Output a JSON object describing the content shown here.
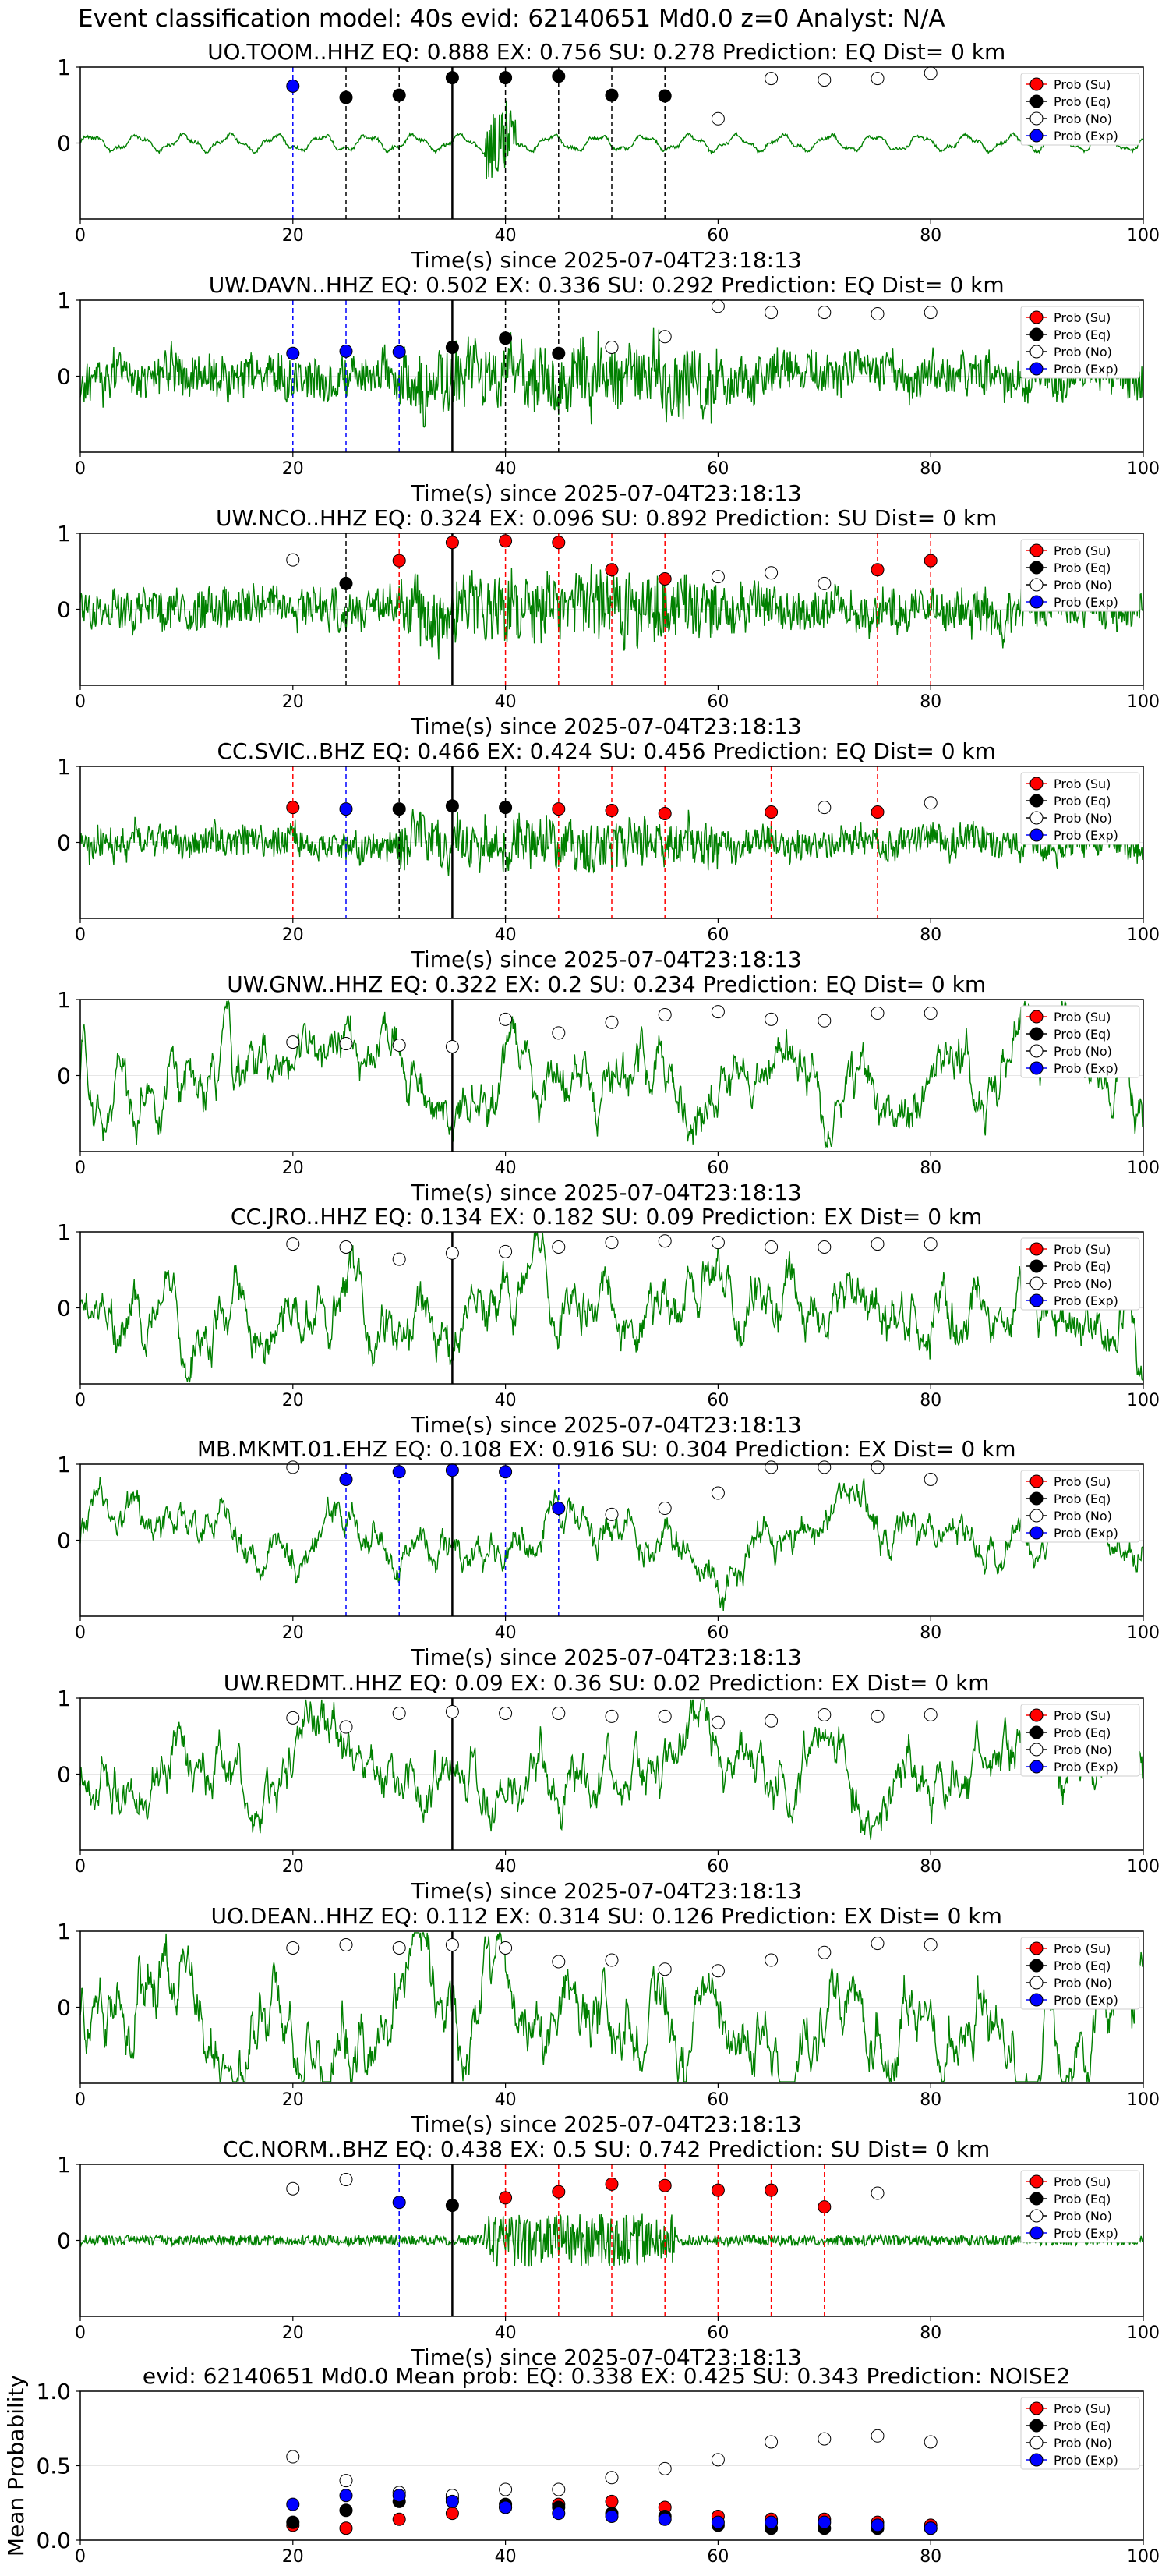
{
  "title": "Event classification model: 40s evid: 62140651 Md0.0 z=0 Analyst: N/A",
  "colors": {
    "trace": "#008000",
    "su": "#ff0000",
    "eq": "#000000",
    "no": "#ffffff",
    "exp": "#0000ff",
    "vline_red": "#ff0000",
    "vline_black": "#000000",
    "vline_blue": "#0000ff",
    "grid": "#e6e6e6"
  },
  "legend": [
    "Prob (Su)",
    "Prob (Eq)",
    "Prob (No)",
    "Prob (Exp)"
  ],
  "xlabel": "Time(s) since 2025-07-04T23:18:13",
  "xticks": [
    "0",
    "20",
    "40",
    "60",
    "80",
    "100"
  ],
  "station_yticks": [
    "1",
    "0"
  ],
  "chart_data": [
    {
      "type": "line",
      "title": "UO.TOOM..HHZ   EQ: 0.888  EX: 0.756  SU: 0.278   Prediction: EQ    Dist= 0 km",
      "xlabel": "Time(s) since 2025-07-04T23:18:13",
      "xlim": [
        0,
        100
      ],
      "ylim": [
        -1,
        1
      ],
      "trace_style": "smooth_low",
      "arrival_line": 35,
      "points": [
        {
          "x": 20,
          "y": 0.75,
          "cls": "exp"
        },
        {
          "x": 25,
          "y": 0.6,
          "cls": "eq"
        },
        {
          "x": 30,
          "y": 0.63,
          "cls": "eq"
        },
        {
          "x": 35,
          "y": 0.86,
          "cls": "eq"
        },
        {
          "x": 40,
          "y": 0.86,
          "cls": "eq"
        },
        {
          "x": 45,
          "y": 0.88,
          "cls": "eq"
        },
        {
          "x": 50,
          "y": 0.63,
          "cls": "eq"
        },
        {
          "x": 55,
          "y": 0.62,
          "cls": "eq"
        },
        {
          "x": 60,
          "y": 0.32,
          "cls": "no"
        },
        {
          "x": 65,
          "y": 0.85,
          "cls": "no"
        },
        {
          "x": 70,
          "y": 0.83,
          "cls": "no"
        },
        {
          "x": 75,
          "y": 0.85,
          "cls": "no"
        },
        {
          "x": 80,
          "y": 0.92,
          "cls": "no"
        }
      ]
    },
    {
      "type": "line",
      "title": "UW.DAVN..HHZ   EQ: 0.502  EX: 0.336  SU: 0.292   Prediction: EQ    Dist= 0 km",
      "xlabel": "Time(s) since 2025-07-04T23:18:13",
      "xlim": [
        0,
        100
      ],
      "ylim": [
        -1,
        1
      ],
      "trace_style": "noisy",
      "arrival_line": 35,
      "points": [
        {
          "x": 20,
          "y": 0.3,
          "cls": "exp"
        },
        {
          "x": 25,
          "y": 0.33,
          "cls": "exp"
        },
        {
          "x": 30,
          "y": 0.32,
          "cls": "exp"
        },
        {
          "x": 35,
          "y": 0.38,
          "cls": "eq"
        },
        {
          "x": 40,
          "y": 0.5,
          "cls": "eq"
        },
        {
          "x": 45,
          "y": 0.3,
          "cls": "eq"
        },
        {
          "x": 50,
          "y": 0.38,
          "cls": "no"
        },
        {
          "x": 55,
          "y": 0.52,
          "cls": "no"
        },
        {
          "x": 60,
          "y": 0.92,
          "cls": "no"
        },
        {
          "x": 65,
          "y": 0.84,
          "cls": "no"
        },
        {
          "x": 70,
          "y": 0.84,
          "cls": "no"
        },
        {
          "x": 75,
          "y": 0.82,
          "cls": "no"
        },
        {
          "x": 80,
          "y": 0.84,
          "cls": "no"
        }
      ]
    },
    {
      "type": "line",
      "title": "UW.NCO..HHZ   EQ: 0.324  EX: 0.096  SU: 0.892   Prediction: SU    Dist= 0 km",
      "xlabel": "Time(s) since 2025-07-04T23:18:13",
      "xlim": [
        0,
        100
      ],
      "ylim": [
        -1,
        1
      ],
      "trace_style": "noisy",
      "arrival_line": 35,
      "points": [
        {
          "x": 20,
          "y": 0.65,
          "cls": "no"
        },
        {
          "x": 25,
          "y": 0.34,
          "cls": "eq"
        },
        {
          "x": 30,
          "y": 0.64,
          "cls": "su"
        },
        {
          "x": 35,
          "y": 0.88,
          "cls": "su"
        },
        {
          "x": 40,
          "y": 0.9,
          "cls": "su"
        },
        {
          "x": 45,
          "y": 0.88,
          "cls": "su"
        },
        {
          "x": 50,
          "y": 0.52,
          "cls": "su"
        },
        {
          "x": 55,
          "y": 0.4,
          "cls": "su"
        },
        {
          "x": 60,
          "y": 0.43,
          "cls": "no"
        },
        {
          "x": 65,
          "y": 0.48,
          "cls": "no"
        },
        {
          "x": 70,
          "y": 0.34,
          "cls": "no"
        },
        {
          "x": 75,
          "y": 0.52,
          "cls": "su"
        },
        {
          "x": 80,
          "y": 0.64,
          "cls": "su"
        }
      ]
    },
    {
      "type": "line",
      "title": "CC.SVIC..BHZ   EQ: 0.466  EX: 0.424  SU: 0.456   Prediction: EQ    Dist= 0 km",
      "xlabel": "Time(s) since 2025-07-04T23:18:13",
      "xlim": [
        0,
        100
      ],
      "ylim": [
        -1,
        1
      ],
      "trace_style": "noisy_mid",
      "arrival_line": 35,
      "points": [
        {
          "x": 20,
          "y": 0.46,
          "cls": "su"
        },
        {
          "x": 25,
          "y": 0.44,
          "cls": "exp"
        },
        {
          "x": 30,
          "y": 0.44,
          "cls": "eq"
        },
        {
          "x": 35,
          "y": 0.48,
          "cls": "eq"
        },
        {
          "x": 40,
          "y": 0.46,
          "cls": "eq"
        },
        {
          "x": 45,
          "y": 0.44,
          "cls": "su"
        },
        {
          "x": 50,
          "y": 0.42,
          "cls": "su"
        },
        {
          "x": 55,
          "y": 0.38,
          "cls": "su"
        },
        {
          "x": 65,
          "y": 0.4,
          "cls": "su"
        },
        {
          "x": 70,
          "y": 0.46,
          "cls": "no"
        },
        {
          "x": 75,
          "y": 0.4,
          "cls": "su"
        },
        {
          "x": 80,
          "y": 0.52,
          "cls": "no"
        }
      ]
    },
    {
      "type": "line",
      "title": "UW.GNW..HHZ   EQ: 0.322  EX: 0.2  SU: 0.234   Prediction: EQ    Dist= 0 km",
      "xlabel": "Time(s) since 2025-07-04T23:18:13",
      "xlim": [
        0,
        100
      ],
      "ylim": [
        -1,
        1
      ],
      "trace_style": "wavy",
      "arrival_line": 35,
      "points": [
        {
          "x": 20,
          "y": 0.44,
          "cls": "no"
        },
        {
          "x": 25,
          "y": 0.42,
          "cls": "no"
        },
        {
          "x": 30,
          "y": 0.4,
          "cls": "no"
        },
        {
          "x": 35,
          "y": 0.38,
          "cls": "no"
        },
        {
          "x": 40,
          "y": 0.74,
          "cls": "no"
        },
        {
          "x": 45,
          "y": 0.56,
          "cls": "no"
        },
        {
          "x": 50,
          "y": 0.7,
          "cls": "no"
        },
        {
          "x": 55,
          "y": 0.8,
          "cls": "no"
        },
        {
          "x": 60,
          "y": 0.84,
          "cls": "no"
        },
        {
          "x": 65,
          "y": 0.74,
          "cls": "no"
        },
        {
          "x": 70,
          "y": 0.72,
          "cls": "no"
        },
        {
          "x": 75,
          "y": 0.82,
          "cls": "no"
        },
        {
          "x": 80,
          "y": 0.82,
          "cls": "no"
        }
      ]
    },
    {
      "type": "line",
      "title": "CC.JRO..HHZ   EQ: 0.134  EX: 0.182  SU: 0.09   Prediction: EX    Dist= 0 km",
      "xlabel": "Time(s) since 2025-07-04T23:18:13",
      "xlim": [
        0,
        100
      ],
      "ylim": [
        -1,
        1
      ],
      "trace_style": "wavy",
      "arrival_line": 35,
      "points": [
        {
          "x": 20,
          "y": 0.84,
          "cls": "no"
        },
        {
          "x": 25,
          "y": 0.8,
          "cls": "no"
        },
        {
          "x": 30,
          "y": 0.64,
          "cls": "no"
        },
        {
          "x": 35,
          "y": 0.72,
          "cls": "no"
        },
        {
          "x": 40,
          "y": 0.74,
          "cls": "no"
        },
        {
          "x": 45,
          "y": 0.8,
          "cls": "no"
        },
        {
          "x": 50,
          "y": 0.86,
          "cls": "no"
        },
        {
          "x": 55,
          "y": 0.88,
          "cls": "no"
        },
        {
          "x": 60,
          "y": 0.86,
          "cls": "no"
        },
        {
          "x": 65,
          "y": 0.8,
          "cls": "no"
        },
        {
          "x": 70,
          "y": 0.8,
          "cls": "no"
        },
        {
          "x": 75,
          "y": 0.84,
          "cls": "no"
        },
        {
          "x": 80,
          "y": 0.84,
          "cls": "no"
        }
      ]
    },
    {
      "type": "line",
      "title": "MB.MKMT.01.EHZ   EQ: 0.108  EX: 0.916  SU: 0.304   Prediction: EX    Dist= 0 km",
      "xlabel": "Time(s) since 2025-07-04T23:18:13",
      "xlim": [
        0,
        100
      ],
      "ylim": [
        -1,
        1
      ],
      "trace_style": "wavy_small",
      "arrival_line": 35,
      "points": [
        {
          "x": 20,
          "y": 0.96,
          "cls": "no"
        },
        {
          "x": 25,
          "y": 0.8,
          "cls": "exp"
        },
        {
          "x": 30,
          "y": 0.9,
          "cls": "exp"
        },
        {
          "x": 35,
          "y": 0.92,
          "cls": "exp"
        },
        {
          "x": 40,
          "y": 0.9,
          "cls": "exp"
        },
        {
          "x": 45,
          "y": 0.42,
          "cls": "exp"
        },
        {
          "x": 50,
          "y": 0.34,
          "cls": "no"
        },
        {
          "x": 55,
          "y": 0.42,
          "cls": "no"
        },
        {
          "x": 60,
          "y": 0.62,
          "cls": "no"
        },
        {
          "x": 65,
          "y": 0.96,
          "cls": "no"
        },
        {
          "x": 70,
          "y": 0.96,
          "cls": "no"
        },
        {
          "x": 75,
          "y": 0.96,
          "cls": "no"
        },
        {
          "x": 80,
          "y": 0.8,
          "cls": "no"
        }
      ]
    },
    {
      "type": "line",
      "title": "UW.REDMT..HHZ   EQ: 0.09  EX: 0.36  SU: 0.02   Prediction: EX    Dist= 0 km",
      "xlabel": "Time(s) since 2025-07-04T23:18:13",
      "xlim": [
        0,
        100
      ],
      "ylim": [
        -1,
        1
      ],
      "trace_style": "wavy",
      "arrival_line": 35,
      "points": [
        {
          "x": 20,
          "y": 0.74,
          "cls": "no"
        },
        {
          "x": 25,
          "y": 0.62,
          "cls": "no"
        },
        {
          "x": 30,
          "y": 0.8,
          "cls": "no"
        },
        {
          "x": 35,
          "y": 0.82,
          "cls": "no"
        },
        {
          "x": 40,
          "y": 0.8,
          "cls": "no"
        },
        {
          "x": 45,
          "y": 0.8,
          "cls": "no"
        },
        {
          "x": 50,
          "y": 0.76,
          "cls": "no"
        },
        {
          "x": 55,
          "y": 0.76,
          "cls": "no"
        },
        {
          "x": 60,
          "y": 0.68,
          "cls": "no"
        },
        {
          "x": 65,
          "y": 0.7,
          "cls": "no"
        },
        {
          "x": 70,
          "y": 0.78,
          "cls": "no"
        },
        {
          "x": 75,
          "y": 0.76,
          "cls": "no"
        },
        {
          "x": 80,
          "y": 0.78,
          "cls": "no"
        }
      ]
    },
    {
      "type": "line",
      "title": "UO.DEAN..HHZ   EQ: 0.112  EX: 0.314  SU: 0.126   Prediction: EX    Dist= 0 km",
      "xlabel": "Time(s) since 2025-07-04T23:18:13",
      "xlim": [
        0,
        100
      ],
      "ylim": [
        -1,
        1
      ],
      "trace_style": "wavy_big",
      "arrival_line": 35,
      "points": [
        {
          "x": 20,
          "y": 0.78,
          "cls": "no"
        },
        {
          "x": 25,
          "y": 0.82,
          "cls": "no"
        },
        {
          "x": 30,
          "y": 0.78,
          "cls": "no"
        },
        {
          "x": 35,
          "y": 0.82,
          "cls": "no"
        },
        {
          "x": 40,
          "y": 0.78,
          "cls": "no"
        },
        {
          "x": 45,
          "y": 0.6,
          "cls": "no"
        },
        {
          "x": 50,
          "y": 0.62,
          "cls": "no"
        },
        {
          "x": 55,
          "y": 0.5,
          "cls": "no"
        },
        {
          "x": 60,
          "y": 0.48,
          "cls": "no"
        },
        {
          "x": 65,
          "y": 0.62,
          "cls": "no"
        },
        {
          "x": 70,
          "y": 0.72,
          "cls": "no"
        },
        {
          "x": 75,
          "y": 0.84,
          "cls": "no"
        },
        {
          "x": 80,
          "y": 0.82,
          "cls": "no"
        }
      ]
    },
    {
      "type": "line",
      "title": "CC.NORM..BHZ   EQ: 0.438  EX: 0.5  SU: 0.742   Prediction: SU    Dist= 0 km",
      "xlabel": "Time(s) since 2025-07-04T23:18:13",
      "xlim": [
        0,
        100
      ],
      "ylim": [
        -1,
        1
      ],
      "trace_style": "burst",
      "arrival_line": 35,
      "points": [
        {
          "x": 20,
          "y": 0.68,
          "cls": "no"
        },
        {
          "x": 25,
          "y": 0.8,
          "cls": "no"
        },
        {
          "x": 30,
          "y": 0.5,
          "cls": "exp"
        },
        {
          "x": 35,
          "y": 0.46,
          "cls": "eq"
        },
        {
          "x": 40,
          "y": 0.56,
          "cls": "su"
        },
        {
          "x": 45,
          "y": 0.64,
          "cls": "su"
        },
        {
          "x": 50,
          "y": 0.74,
          "cls": "su"
        },
        {
          "x": 55,
          "y": 0.72,
          "cls": "su"
        },
        {
          "x": 60,
          "y": 0.66,
          "cls": "su"
        },
        {
          "x": 65,
          "y": 0.66,
          "cls": "su"
        },
        {
          "x": 70,
          "y": 0.44,
          "cls": "su"
        },
        {
          "x": 75,
          "y": 0.62,
          "cls": "no"
        }
      ]
    },
    {
      "type": "scatter",
      "title": "evid: 62140651  Md0.0   Mean prob:   EQ: 0.338  EX: 0.425  SU: 0.343   Prediction: NOISE2",
      "ylabel": "Mean Probability",
      "xlim": [
        0,
        100
      ],
      "ylim": [
        0,
        1
      ],
      "yticks": [
        "1.0",
        "0.5",
        "0.0"
      ],
      "series": [
        {
          "name": "Prob (Su)",
          "cls": "su",
          "x": [
            20,
            25,
            30,
            35,
            40,
            45,
            50,
            55,
            60,
            65,
            70,
            75,
            80
          ],
          "y": [
            0.1,
            0.08,
            0.14,
            0.18,
            0.22,
            0.24,
            0.26,
            0.22,
            0.16,
            0.14,
            0.14,
            0.12,
            0.1
          ]
        },
        {
          "name": "Prob (Eq)",
          "cls": "eq",
          "x": [
            20,
            25,
            30,
            35,
            40,
            45,
            50,
            55,
            60,
            65,
            70,
            75,
            80
          ],
          "y": [
            0.12,
            0.2,
            0.26,
            0.28,
            0.24,
            0.22,
            0.18,
            0.16,
            0.1,
            0.08,
            0.08,
            0.08,
            0.08
          ]
        },
        {
          "name": "Prob (No)",
          "cls": "no",
          "x": [
            20,
            25,
            30,
            35,
            40,
            45,
            50,
            55,
            60,
            65,
            70,
            75,
            80
          ],
          "y": [
            0.56,
            0.4,
            0.32,
            0.3,
            0.34,
            0.34,
            0.42,
            0.48,
            0.54,
            0.66,
            0.68,
            0.7,
            0.66
          ]
        },
        {
          "name": "Prob (Exp)",
          "cls": "exp",
          "x": [
            20,
            25,
            30,
            35,
            40,
            45,
            50,
            55,
            60,
            65,
            70,
            75,
            80
          ],
          "y": [
            0.24,
            0.3,
            0.3,
            0.26,
            0.22,
            0.18,
            0.16,
            0.14,
            0.12,
            0.12,
            0.12,
            0.1,
            0.08
          ]
        }
      ]
    }
  ]
}
